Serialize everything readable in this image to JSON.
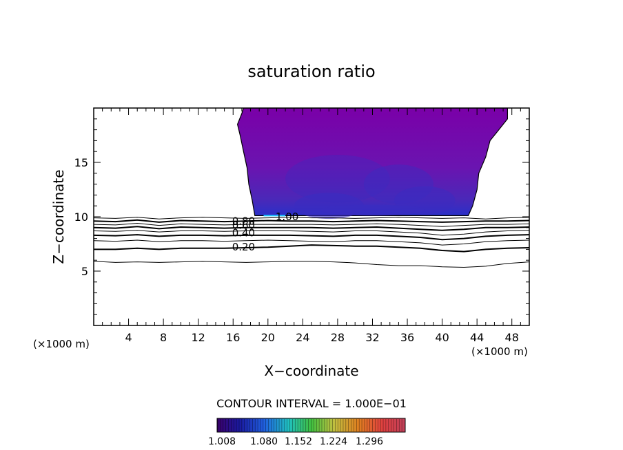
{
  "chart_data": {
    "type": "contour",
    "title": "saturation ratio",
    "xlabel": "X−coordinate",
    "ylabel": "Z−coordinate",
    "x_unit_left": "(×1000 m)",
    "x_unit_right": "(×1000 m)",
    "xlim": [
      0,
      50
    ],
    "ylim": [
      0,
      20
    ],
    "x_ticks": [
      4,
      8,
      12,
      16,
      20,
      24,
      28,
      32,
      36,
      40,
      44,
      48
    ],
    "y_ticks": [
      5,
      10,
      15
    ],
    "contour_interval_label": "CONTOUR INTERVAL = 1.000E−01",
    "contour_labels": [
      {
        "text": "1.00",
        "x": 22.2,
        "z": 10.0
      },
      {
        "text": "0.80",
        "x": 17.2,
        "z": 9.6
      },
      {
        "text": "0.60",
        "x": 17.2,
        "z": 9.2
      },
      {
        "text": "0.40",
        "x": 17.2,
        "z": 8.5
      },
      {
        "text": "0.20",
        "x": 17.2,
        "z": 7.2
      }
    ],
    "contour_lines": [
      {
        "level": 0.9,
        "bold": false,
        "z": [
          9.9,
          9.85,
          9.95,
          9.8,
          9.9,
          9.95,
          9.9,
          9.85,
          9.9,
          9.95,
          9.9,
          9.9,
          9.85,
          9.9,
          9.95,
          9.9,
          9.85,
          9.9,
          9.8,
          9.9,
          9.95
        ]
      },
      {
        "level": 0.8,
        "bold": true,
        "z": [
          9.6,
          9.55,
          9.7,
          9.5,
          9.65,
          9.6,
          9.55,
          9.6,
          9.65,
          9.6,
          9.6,
          9.55,
          9.6,
          9.65,
          9.6,
          9.55,
          9.5,
          9.55,
          9.6,
          9.6,
          9.65
        ]
      },
      {
        "level": 0.7,
        "bold": false,
        "z": [
          9.3,
          9.25,
          9.4,
          9.2,
          9.35,
          9.3,
          9.25,
          9.3,
          9.3,
          9.3,
          9.3,
          9.25,
          9.3,
          9.35,
          9.3,
          9.2,
          9.1,
          9.2,
          9.3,
          9.3,
          9.35
        ]
      },
      {
        "level": 0.6,
        "bold": true,
        "z": [
          9.0,
          8.95,
          9.1,
          8.9,
          9.05,
          9.0,
          8.95,
          9.0,
          9.0,
          9.0,
          9.0,
          8.95,
          9.0,
          9.05,
          8.95,
          8.85,
          8.75,
          8.85,
          9.0,
          9.0,
          9.05
        ]
      },
      {
        "level": 0.5,
        "bold": false,
        "z": [
          8.7,
          8.65,
          8.75,
          8.6,
          8.7,
          8.7,
          8.65,
          8.7,
          8.7,
          8.7,
          8.65,
          8.6,
          8.7,
          8.7,
          8.6,
          8.5,
          8.3,
          8.4,
          8.6,
          8.7,
          8.75
        ]
      },
      {
        "level": 0.4,
        "bold": true,
        "z": [
          8.3,
          8.25,
          8.35,
          8.2,
          8.3,
          8.3,
          8.25,
          8.3,
          8.3,
          8.3,
          8.25,
          8.2,
          8.3,
          8.3,
          8.2,
          8.1,
          7.9,
          8.0,
          8.2,
          8.3,
          8.35
        ]
      },
      {
        "level": 0.3,
        "bold": false,
        "z": [
          7.8,
          7.75,
          7.85,
          7.7,
          7.8,
          7.8,
          7.75,
          7.8,
          7.85,
          7.8,
          7.75,
          7.7,
          7.8,
          7.8,
          7.7,
          7.6,
          7.4,
          7.5,
          7.7,
          7.8,
          7.85
        ]
      },
      {
        "level": 0.2,
        "bold": true,
        "z": [
          7.0,
          7.0,
          7.1,
          7.0,
          7.1,
          7.1,
          7.1,
          7.15,
          7.2,
          7.3,
          7.4,
          7.35,
          7.3,
          7.3,
          7.2,
          7.1,
          6.9,
          6.8,
          7.0,
          7.1,
          7.15
        ]
      },
      {
        "level": 0.1,
        "bold": false,
        "z": [
          5.9,
          5.8,
          5.85,
          5.8,
          5.85,
          5.9,
          5.85,
          5.8,
          5.85,
          5.9,
          5.9,
          5.85,
          5.75,
          5.6,
          5.5,
          5.5,
          5.4,
          5.35,
          5.45,
          5.7,
          5.85
        ]
      }
    ],
    "cloud_region": {
      "left_edge": [
        [
          18.5,
          10.1
        ],
        [
          18.2,
          11.5
        ],
        [
          17.8,
          13.0
        ],
        [
          17.6,
          14.5
        ],
        [
          17.2,
          16.0
        ],
        [
          16.8,
          17.5
        ],
        [
          16.5,
          18.5
        ],
        [
          17.0,
          19.5
        ],
        [
          17.2,
          20.0
        ]
      ],
      "right_edge": [
        [
          47.5,
          20.0
        ],
        [
          47.5,
          19.0
        ],
        [
          46.5,
          18.0
        ],
        [
          45.5,
          17.0
        ],
        [
          45.0,
          15.5
        ],
        [
          44.2,
          14.0
        ],
        [
          44.0,
          12.5
        ],
        [
          43.5,
          11.0
        ],
        [
          43.0,
          10.1
        ]
      ],
      "base_z": 10.1
    },
    "colorbar": {
      "ticks": [
        "1.008",
        "1.080",
        "1.152",
        "1.224",
        "1.296"
      ],
      "colors": [
        "#3a006a",
        "#1a1aa0",
        "#2060e0",
        "#20c0c0",
        "#40c040",
        "#c0c040",
        "#e08020",
        "#e04040",
        "#c0405a"
      ]
    }
  }
}
